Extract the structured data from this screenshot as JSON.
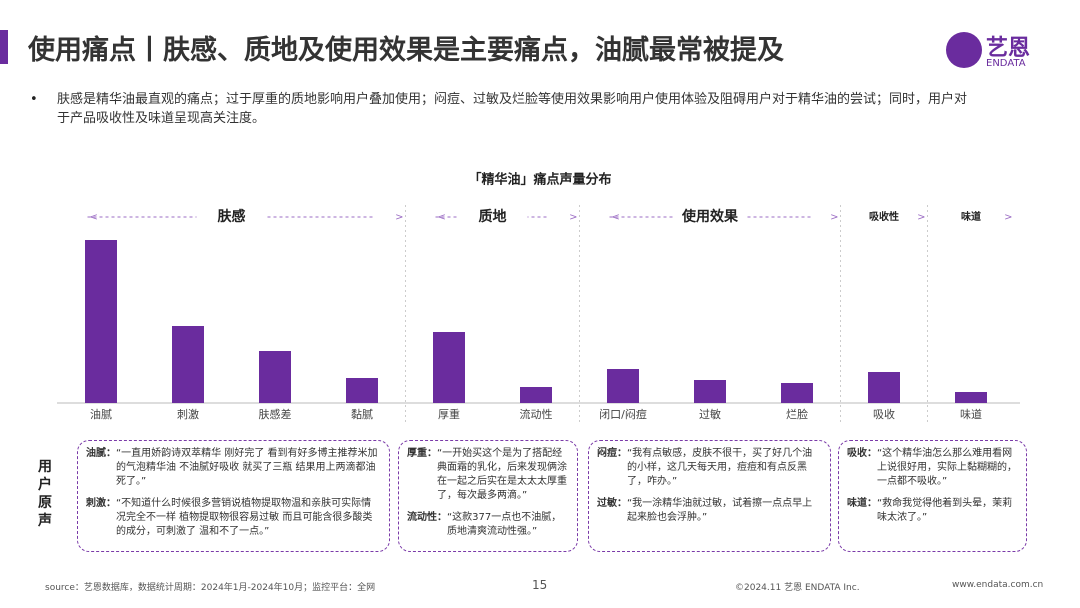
{
  "header": {
    "title": "使用痛点丨肤感、质地及使用效果是主要痛点，油腻最常被提及",
    "logo": "艺恩",
    "logo_sub": "ENDATA"
  },
  "bullet": "肤感是精华油最直观的痛点；过于厚重的质地影响用户叠加使用；闷痘、过敏及烂脸等使用效果影响用户使用体验及阻碍用户对于精华油的尝试；同时，用户对于产品吸收性及味道呈现高关注度。",
  "chart_data": {
    "type": "bar",
    "title": "「精华油」痛点声量分布",
    "color": "#6a2c9e",
    "ylim": [
      0,
      170
    ],
    "groups": [
      {
        "name": "肤感",
        "categories": [
          "油腻",
          "刺激",
          "肤感差",
          "黏腻"
        ],
        "values": [
          163,
          77,
          52,
          25
        ]
      },
      {
        "name": "质地",
        "categories": [
          "厚重",
          "流动性"
        ],
        "values": [
          71,
          16
        ]
      },
      {
        "name": "使用效果",
        "categories": [
          "闭口/闷痘",
          "过敏",
          "烂脸"
        ],
        "values": [
          34,
          23,
          20
        ]
      },
      {
        "name": "吸收性",
        "categories": [
          "吸收"
        ],
        "values": [
          31
        ]
      },
      {
        "name": "味道",
        "categories": [
          "味道"
        ],
        "values": [
          11
        ]
      }
    ]
  },
  "quotes": {
    "label": "用户原声",
    "boxes": [
      [
        {
          "label": "油腻：",
          "text": "“一直用娇韵诗双萃精华 刚好完了 看到有好多博主推荐米加的气泡精华油 不油腻好吸收 就买了三瓶 结果用上两滴都油死了。”"
        },
        {
          "label": "刺激：",
          "text": "“不知道什么时候很多营销说植物提取物温和亲肤可实际情况完全不一样 植物提取物很容易过敏 而且可能含很多酸类的成分，可刺激了 温和不了一点。”"
        }
      ],
      [
        {
          "label": "厚重：",
          "text": "“一开始买这个是为了搭配经典面霜的乳化，后来发现俩涂在一起之后实在是太太太厚重了，每次最多两滴。”"
        },
        {
          "label": "流动性：",
          "text": "“这款377一点也不油腻，质地清爽流动性强。”"
        }
      ],
      [
        {
          "label": "闷痘：",
          "text": "“我有点敏感，皮肤不很干，买了好几个油的小样，这几天每天用，痘痘和有点反黑了，咋办。”"
        },
        {
          "label": "过敏：",
          "text": "“我一涂精华油就过敏，试着擦一点点早上起来脸也会浮肿。”"
        }
      ],
      [
        {
          "label": "吸收：",
          "text": "“这个精华油怎么那么难用看网上说很好用，实际上黏糊糊的，一点都不吸收。”"
        },
        {
          "label": "味道：",
          "text": "“救命我觉得他着到头晕，茉莉味太浓了。”"
        }
      ]
    ]
  },
  "footer": {
    "source": "source：艺恩数据库，数据统计周期：2024年1月-2024年10月；监控平台：全网",
    "page": "15",
    "copyright": "©2024.11 艺恩 ENDATA Inc.",
    "url": "www.endata.com.cn"
  }
}
